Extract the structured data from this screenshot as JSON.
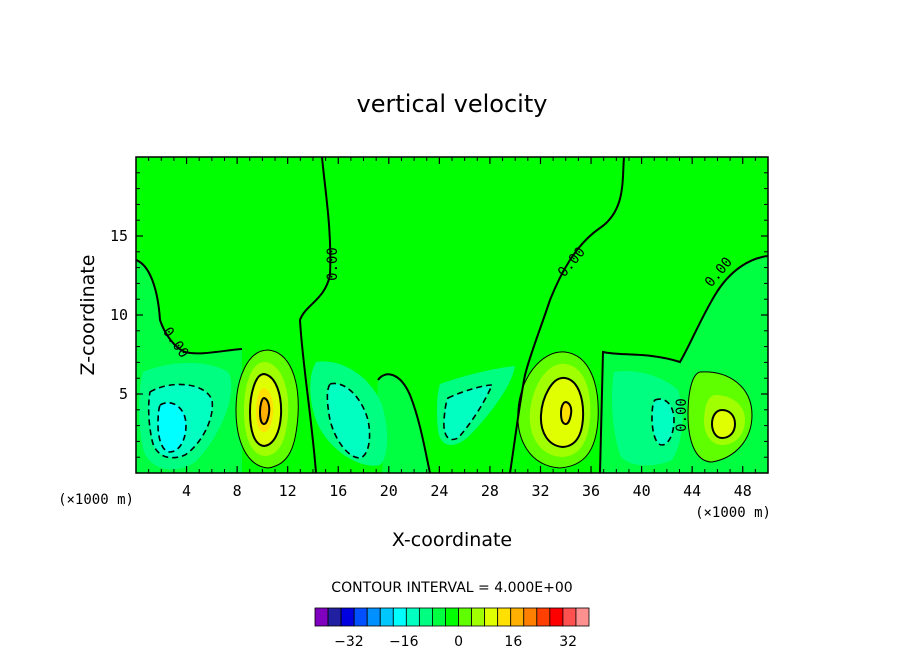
{
  "chart_data": {
    "type": "heatmap",
    "subtype": "filled-contour",
    "title": "vertical velocity",
    "xlabel": "X-coordinate",
    "ylabel": "Z-coordinate",
    "x_unit_label": "(×1000 m)",
    "xlim": [
      0,
      50
    ],
    "ylim": [
      0,
      20
    ],
    "x_ticks": [
      4,
      8,
      12,
      16,
      20,
      24,
      28,
      32,
      36,
      40,
      44,
      48
    ],
    "y_ticks": [
      5,
      10,
      15
    ],
    "contour_interval_text": "CONTOUR INTERVAL = 4.000E+00",
    "contour_interval": 4,
    "zero_contour_label": "0.00",
    "colorbar": {
      "range": [
        -40,
        40
      ],
      "ticks": [
        -32,
        -16,
        0,
        16,
        32
      ],
      "colors": [
        "#8000c0",
        "#2020a0",
        "#0000e0",
        "#0050ff",
        "#0090ff",
        "#00c8ff",
        "#00ffff",
        "#00ffc0",
        "#00ff80",
        "#00ff40",
        "#00ff00",
        "#60ff00",
        "#a0ff00",
        "#e0ff00",
        "#ffe000",
        "#ffb000",
        "#ff8000",
        "#ff4000",
        "#ff0000",
        "#ff5050",
        "#ff9090"
      ]
    },
    "features": [
      {
        "kind": "downdraft",
        "x": 3,
        "z": 3,
        "min": -16
      },
      {
        "kind": "updraft",
        "x": 10,
        "z": 4,
        "max": 12
      },
      {
        "kind": "downdraft",
        "x": 18,
        "z": 3.5,
        "min": -12
      },
      {
        "kind": "downdraft",
        "x": 26,
        "z": 3.5,
        "min": -8
      },
      {
        "kind": "updraft",
        "x": 34,
        "z": 4,
        "max": 12
      },
      {
        "kind": "downdraft",
        "x": 41,
        "z": 3,
        "min": -12
      },
      {
        "kind": "updraft",
        "x": 46,
        "z": 3,
        "max": 8
      }
    ]
  }
}
